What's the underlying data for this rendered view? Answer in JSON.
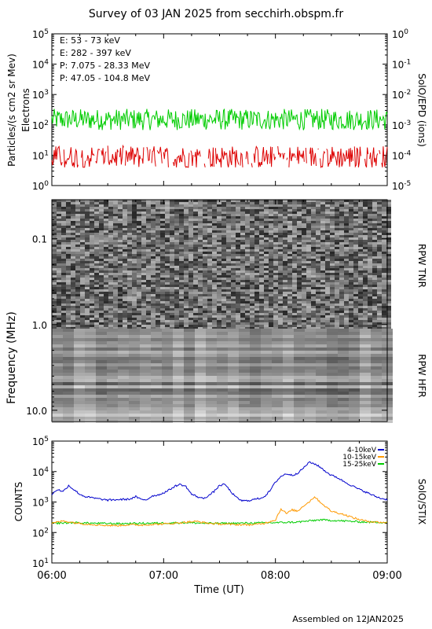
{
  "title": "Survey of 03 JAN 2025 from secchirh.obspm.fr",
  "footer": "Assembled on 12JAN2025",
  "chart_data": [
    {
      "type": "line",
      "panel": "epd",
      "ylabel": "Particles/(s cm2 sr Mev)",
      "ylabel2": "Electrons",
      "right_label": "SolO/EPD (ions)",
      "yscale": "log",
      "ylim": [
        1,
        100000
      ],
      "yticks": [
        "10^0",
        "10^1",
        "10^2",
        "10^3",
        "10^4",
        "10^5"
      ],
      "right_yticks": [
        "10^-5",
        "10^-4",
        "10^-3",
        "10^-2",
        "10^-1",
        "10^0"
      ],
      "xlim": [
        "06:00",
        "09:00"
      ],
      "legend_location": "top-left",
      "series": [
        {
          "name": "E: 53 - 73 keV",
          "color": "#00cc00",
          "level": 150,
          "range": [
            60,
            400
          ]
        },
        {
          "name": "E: 282 - 397 keV",
          "color": "#dd0000",
          "level": 8,
          "range": [
            4,
            30
          ]
        },
        {
          "name": "P: 7.075 - 28.33 MeV",
          "color": "#000000"
        },
        {
          "name": "P: 47.05 - 104.8 MeV",
          "color": "#0000cc"
        }
      ]
    },
    {
      "type": "heatmap",
      "panel": "rpw",
      "ylabel": "Frequency (MHz)",
      "yticks": [
        "0.1",
        "1.0",
        "10.0"
      ],
      "right_labels": [
        "RPW TNR",
        "RPW HFR"
      ],
      "xlim": [
        "06:00",
        "09:00"
      ]
    },
    {
      "type": "line",
      "panel": "stix",
      "ylabel": "COUNTS",
      "right_label": "SolO/STIX",
      "xlabel": "Time (UT)",
      "yscale": "log",
      "ylim": [
        10,
        100000
      ],
      "yticks": [
        "10^1",
        "10^2",
        "10^3",
        "10^4",
        "10^5"
      ],
      "xticks": [
        "06:00",
        "07:00",
        "08:00",
        "09:00"
      ],
      "legend_location": "top-right",
      "series": [
        {
          "name": "4-10keV",
          "color": "#0000cc",
          "x": [
            0,
            0.05,
            0.1,
            0.15,
            0.2,
            0.25,
            0.3,
            0.4,
            0.5,
            0.6,
            0.7,
            0.75,
            0.8,
            0.85,
            0.9,
            0.95,
            1.0,
            1.05,
            1.1,
            1.15,
            1.2,
            1.25,
            1.3,
            1.35,
            1.4,
            1.45,
            1.5,
            1.55,
            1.6,
            1.65,
            1.7,
            1.75,
            1.8,
            1.85,
            1.9,
            1.95,
            2.0,
            2.05,
            2.1,
            2.15,
            2.2,
            2.25,
            2.3,
            2.35,
            2.4,
            2.45,
            2.5,
            2.55,
            2.6,
            2.65,
            2.7,
            2.75,
            2.8,
            2.85,
            2.9,
            2.95,
            3.0
          ],
          "values": [
            1800,
            2600,
            2200,
            3500,
            2500,
            1800,
            1500,
            1300,
            1150,
            1200,
            1250,
            1500,
            1200,
            1200,
            1600,
            1700,
            2000,
            2500,
            3300,
            3800,
            3200,
            1800,
            1500,
            1300,
            1600,
            2200,
            3500,
            3800,
            2200,
            1400,
            1100,
            1100,
            1200,
            1300,
            1500,
            2300,
            4500,
            7000,
            8500,
            7500,
            9000,
            13000,
            20000,
            18000,
            14000,
            10000,
            7500,
            6500,
            5000,
            4000,
            3200,
            2600,
            2200,
            1800,
            1500,
            1300,
            1200
          ]
        },
        {
          "name": "10-15keV",
          "color": "#ff9900",
          "x": [
            0,
            0.1,
            0.2,
            0.3,
            0.4,
            0.5,
            0.6,
            0.7,
            0.8,
            0.9,
            1.0,
            1.1,
            1.2,
            1.3,
            1.4,
            1.5,
            1.6,
            1.7,
            1.8,
            1.9,
            1.95,
            2.0,
            2.05,
            2.1,
            2.15,
            2.2,
            2.25,
            2.3,
            2.35,
            2.4,
            2.45,
            2.5,
            2.55,
            2.6,
            2.65,
            2.7,
            2.8,
            2.9,
            3.0
          ],
          "values": [
            200,
            240,
            210,
            190,
            180,
            170,
            170,
            180,
            175,
            185,
            190,
            200,
            220,
            230,
            200,
            190,
            185,
            180,
            180,
            200,
            230,
            260,
            600,
            420,
            550,
            500,
            750,
            1000,
            1500,
            1000,
            700,
            500,
            450,
            400,
            350,
            300,
            240,
            220,
            210
          ]
        },
        {
          "name": "15-25keV",
          "color": "#00cc00",
          "x": [
            0,
            0.2,
            0.4,
            0.6,
            0.8,
            1.0,
            1.2,
            1.4,
            1.6,
            1.8,
            2.0,
            2.2,
            2.4,
            2.6,
            2.8,
            3.0
          ],
          "values": [
            200,
            210,
            200,
            195,
            200,
            205,
            210,
            200,
            200,
            205,
            210,
            220,
            260,
            240,
            220,
            215
          ]
        }
      ]
    }
  ]
}
